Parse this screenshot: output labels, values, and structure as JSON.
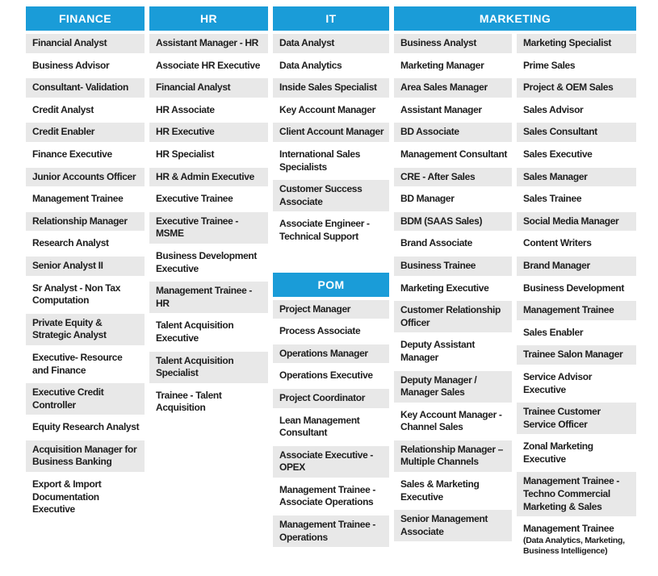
{
  "palette": {
    "header_bg": "#1a9cd8",
    "header_text": "#ffffff",
    "row_alt_bg": "#e8e8e8",
    "row_text": "#1d1d1d",
    "page_bg": "#ffffff"
  },
  "top_headers": [
    {
      "label": "FINANCE",
      "span": 1
    },
    {
      "label": "HR",
      "span": 1
    },
    {
      "label": "IT",
      "span": 1
    },
    {
      "label": "MARKETING",
      "span": 2
    }
  ],
  "columns": [
    {
      "name": "finance",
      "sections": [
        {
          "items": [
            "Financial Analyst",
            "Business Advisor",
            "Consultant- Validation",
            "Credit Analyst",
            "Credit Enabler",
            "Finance Executive",
            "Junior Accounts Officer",
            "Management Trainee",
            "Relationship Manager",
            "Research Analyst",
            "Senior Analyst II",
            "Sr Analyst - Non Tax Computation",
            "Private Equity & Strategic Analyst",
            "Executive- Resource and Finance",
            "Executive Credit Controller",
            "Equity Research Analyst",
            "Acquisition Manager for Business Banking",
            "Export & Import Documentation Executive"
          ]
        }
      ]
    },
    {
      "name": "hr",
      "sections": [
        {
          "items": [
            "Assistant Manager - HR",
            "Associate HR Executive",
            "Financial Analyst",
            "HR Associate",
            "HR Executive",
            "HR Specialist",
            "HR & Admin Executive",
            "Executive Trainee",
            "Executive Trainee - MSME",
            "Business Development Executive",
            "Management Trainee - HR",
            "Talent Acquisition Executive",
            "Talent Acquisition Specialist",
            "Trainee - Talent Acquisition"
          ]
        }
      ]
    },
    {
      "name": "it-pom",
      "sections": [
        {
          "items": [
            "Data Analyst",
            "Data Analytics",
            "Inside Sales Specialist",
            "Key Account Manager",
            "Client Account Manager",
            "International Sales Specialists",
            "Customer Success Associate",
            "Associate Engineer - Technical Support"
          ]
        },
        {
          "header": "POM",
          "items": [
            "Project Manager",
            "Process Associate",
            "Operations Manager",
            "Operations Executive",
            "Project Coordinator",
            "Lean Management Consultant",
            "Associate Executive - OPEX",
            "Management Trainee - Associate Operations",
            "Management Trainee - Operations"
          ]
        }
      ]
    },
    {
      "name": "marketing-left",
      "sections": [
        {
          "items": [
            "Business Analyst",
            "Marketing Manager",
            "Area Sales Manager",
            "Assistant Manager",
            "BD Associate",
            "Management Consultant",
            "CRE - After Sales",
            "BD Manager",
            "BDM (SAAS Sales)",
            "Brand Associate",
            "Business Trainee",
            "Marketing Executive",
            "Customer Relationship Officer",
            "Deputy Assistant Manager",
            "Deputy Manager / Manager Sales",
            "Key Account Manager - Channel Sales",
            "Relationship Manager – Multiple Channels",
            "Sales & Marketing Executive",
            "Senior Management Associate"
          ]
        }
      ]
    },
    {
      "name": "marketing-right",
      "sections": [
        {
          "items": [
            "Marketing Specialist",
            "Prime Sales",
            "Project & OEM Sales",
            "Sales Advisor",
            "Sales Consultant",
            "Sales Executive",
            "Sales Manager",
            "Sales Trainee",
            "Social Media Manager",
            "Content Writers",
            "Brand Manager",
            "Business Development",
            "Management Trainee",
            "Sales Enabler",
            "Trainee Salon Manager",
            "Service Advisor Executive",
            "Trainee Customer Service Officer",
            "Zonal Marketing Executive",
            "Management Trainee - Techno Commercial Marketing & Sales",
            {
              "label": "Management Trainee",
              "sub": "(Data Analytics, Marketing, Business Intelligence)"
            }
          ]
        }
      ]
    }
  ]
}
